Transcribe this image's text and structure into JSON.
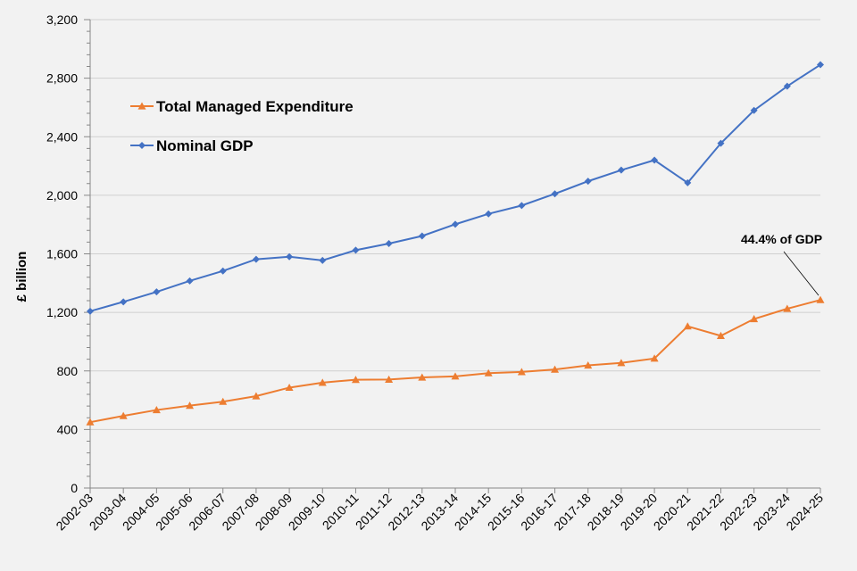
{
  "chart_data": {
    "type": "line",
    "title": "",
    "xlabel": "",
    "ylabel": "£ billion",
    "ylim": [
      0,
      3200
    ],
    "yticks": [
      0,
      400,
      800,
      1200,
      1600,
      2000,
      2400,
      2800,
      3200
    ],
    "ytick_labels": [
      "0",
      "400",
      "800",
      "1,200",
      "1,600",
      "2,000",
      "2,400",
      "2,800",
      "3,200"
    ],
    "grid": true,
    "legend_position": "top-left",
    "categories": [
      "2002-03",
      "2003-04",
      "2004-05",
      "2005-06",
      "2006-07",
      "2007-08",
      "2008-09",
      "2009-10",
      "2010-11",
      "2011-12",
      "2012-13",
      "2013-14",
      "2014-15",
      "2015-16",
      "2016-17",
      "2017-18",
      "2018-19",
      "2019-20",
      "2020-21",
      "2021-22",
      "2022-23",
      "2023-24",
      "2024-25"
    ],
    "series": [
      {
        "name": "Total Managed Expenditure",
        "color": "#ed7d31",
        "marker": "triangle",
        "values": [
          450,
          493,
          533,
          563,
          590,
          628,
          686,
          720,
          740,
          741,
          756,
          763,
          785,
          793,
          810,
          838,
          855,
          885,
          1105,
          1040,
          1155,
          1225,
          1285
        ]
      },
      {
        "name": "Nominal GDP",
        "color": "#4472c4",
        "marker": "diamond",
        "values": [
          1208,
          1272,
          1340,
          1415,
          1483,
          1563,
          1580,
          1555,
          1625,
          1670,
          1722,
          1802,
          1873,
          1930,
          2010,
          2096,
          2172,
          2240,
          2085,
          2355,
          2580,
          2745,
          2892
        ]
      }
    ],
    "annotation": {
      "text": "44.4% of GDP",
      "series": "Total Managed Expenditure",
      "category": "2024-25"
    }
  }
}
